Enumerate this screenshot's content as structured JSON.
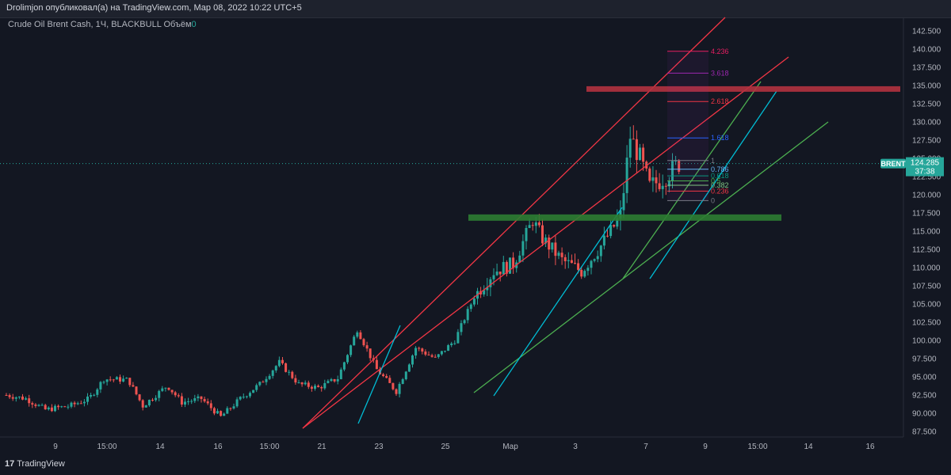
{
  "header": {
    "publish_line": "Drolimjon опубликовал(а) на TradingView.com, Мар 08, 2022 10:22 UTC+5"
  },
  "legend": {
    "symbol": "Crude Oil Brent Cash, 1Ч, BLACKBULL",
    "volume_label": "Объём",
    "volume_value": "0"
  },
  "badge": {
    "name": "BRENT",
    "price": "124.285",
    "countdown": "37:38"
  },
  "footer": {
    "logo_mark": "17",
    "brand": "TradingView"
  },
  "colors": {
    "bg": "#131722",
    "up": "#26a69a",
    "down": "#ef5350",
    "red_line": "#f23645",
    "green_line": "#4caf50",
    "cyan_line": "#00bcd4",
    "resistance_zone": "#b2323f",
    "support_zone": "#2e7d32",
    "price_badge": "#26a69a"
  },
  "chart_data": {
    "type": "line",
    "y_axis_ticks": [
      "142.500",
      "140.000",
      "137.500",
      "135.000",
      "132.500",
      "130.000",
      "127.500",
      "125.000",
      "122.500",
      "120.000",
      "117.500",
      "115.000",
      "112.500",
      "110.000",
      "107.500",
      "105.000",
      "102.500",
      "100.000",
      "97.500",
      "95.000",
      "92.500",
      "90.000",
      "87.500"
    ],
    "x_axis_ticks": [
      "9",
      "15:00",
      "14",
      "16",
      "15:00",
      "21",
      "23",
      "25",
      "Мар",
      "3",
      "7",
      "9",
      "15:00",
      "14",
      "16"
    ],
    "ylim": [
      87,
      143.5
    ],
    "approx_price_path": [
      [
        0,
        92.5
      ],
      [
        4,
        92
      ],
      [
        8,
        90.5
      ],
      [
        13,
        91
      ],
      [
        17,
        92
      ],
      [
        20,
        94.7
      ],
      [
        25,
        94.6
      ],
      [
        28,
        91
      ],
      [
        33,
        93.8
      ],
      [
        36,
        91.5
      ],
      [
        40,
        92
      ],
      [
        44,
        89.5
      ],
      [
        48,
        92
      ],
      [
        52,
        94
      ],
      [
        56,
        97
      ],
      [
        60,
        94
      ],
      [
        64,
        93.5
      ],
      [
        68,
        94.8
      ],
      [
        72,
        101.5
      ],
      [
        76,
        96
      ],
      [
        80,
        93
      ],
      [
        84,
        99
      ],
      [
        88,
        97.5
      ],
      [
        92,
        100
      ],
      [
        96,
        106
      ],
      [
        100,
        109.5
      ],
      [
        104,
        110.5
      ],
      [
        108,
        116.5
      ],
      [
        110,
        114
      ],
      [
        114,
        111
      ],
      [
        118,
        109.5
      ],
      [
        122,
        113
      ],
      [
        126,
        117
      ],
      [
        128,
        128
      ],
      [
        130,
        125
      ],
      [
        132,
        121
      ],
      [
        134,
        122
      ],
      [
        136,
        123
      ],
      [
        138,
        124.3
      ]
    ],
    "fibonacci": {
      "levels": [
        "0",
        "0.236",
        "0.382",
        "0.5",
        "0.618",
        "0.786",
        "1",
        "1.618",
        "2.618",
        "3.618",
        "4.236"
      ]
    },
    "zones": [
      {
        "name": "resistance",
        "price": 134.5
      },
      {
        "name": "support",
        "price": 116.8
      }
    ],
    "last_price": 124.285
  }
}
